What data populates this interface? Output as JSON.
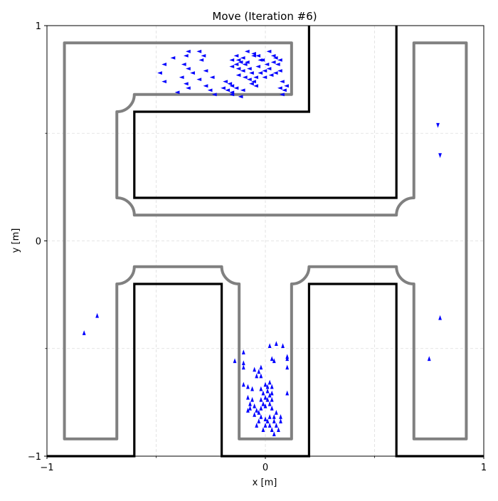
{
  "chart_data": {
    "type": "scatter",
    "title": "Move (Iteration #6)",
    "xlabel": "x [m]",
    "ylabel": "y [m]",
    "xlim": [
      -1,
      1
    ],
    "ylim": [
      -1,
      1
    ],
    "x_ticks": [
      {
        "value": -1,
        "label": "−1"
      },
      {
        "value": 0,
        "label": "0"
      },
      {
        "value": 1,
        "label": "1"
      }
    ],
    "y_ticks": [
      {
        "value": -1,
        "label": "−1"
      },
      {
        "value": 0,
        "label": "0"
      },
      {
        "value": 1,
        "label": "1"
      }
    ],
    "minor_ticks": [
      -0.5,
      0.5
    ],
    "grid": true,
    "colors": {
      "particles": "#0000ff",
      "walls": "#000000",
      "track": "#808080",
      "grid": "#dddddd"
    },
    "walls": [
      [
        [
          0.2,
          1.0
        ],
        [
          0.2,
          0.6
        ],
        [
          -0.6,
          0.6
        ],
        [
          -0.6,
          0.2
        ],
        [
          0.6,
          0.2
        ],
        [
          0.6,
          1.0
        ]
      ],
      [
        [
          -1.0,
          -1.0
        ],
        [
          -0.6,
          -1.0
        ],
        [
          -0.6,
          -0.2
        ],
        [
          -0.2,
          -0.2
        ],
        [
          -0.2,
          -1.0
        ],
        [
          0.2,
          -1.0
        ],
        [
          0.2,
          -0.2
        ],
        [
          0.6,
          -0.2
        ],
        [
          0.6,
          -1.0
        ],
        [
          1.0,
          -1.0
        ]
      ]
    ],
    "track_paths": [
      "M -0.92 0.92 L 0.12 0.92 L 0.12 0.68 L -0.6 0.68 A 0.08 0.08 0 0 0 -0.68 0.6 L -0.68 0.2 A 0.08 0.08 0 0 0 -0.6 0.12 L 0.6 0.12 A 0.08 0.08 0 0 0 0.68 0.2 L 0.68 0.92 L 0.92 0.92 L 0.92 -0.92 L 0.68 -0.92 L 0.68 -0.2 A 0.08 0.08 0 0 0 0.6 -0.12 L 0.2 -0.12 A 0.08 0.08 0 0 0 0.12 -0.2 L 0.12 -0.92 L -0.12 -0.92 L -0.12 -0.2 A 0.08 0.08 0 0 0 -0.2 -0.12 L -0.6 -0.12 A 0.08 0.08 0 0 0 -0.68 -0.2 L -0.68 -0.92 L -0.92 -0.92 Z"
    ],
    "particle_clusters": [
      {
        "region": "top-corridor",
        "dir": "left",
        "points": [
          [
            -0.35,
            0.88
          ],
          [
            -0.3,
            0.88
          ],
          [
            -0.42,
            0.85
          ],
          [
            -0.36,
            0.86
          ],
          [
            -0.28,
            0.86
          ],
          [
            -0.46,
            0.82
          ],
          [
            -0.37,
            0.82
          ],
          [
            -0.29,
            0.84
          ],
          [
            -0.48,
            0.78
          ],
          [
            -0.35,
            0.8
          ],
          [
            -0.27,
            0.79
          ],
          [
            -0.38,
            0.76
          ],
          [
            -0.33,
            0.78
          ],
          [
            -0.3,
            0.75
          ],
          [
            -0.46,
            0.74
          ],
          [
            -0.24,
            0.76
          ],
          [
            -0.36,
            0.73
          ],
          [
            -0.4,
            0.69
          ],
          [
            -0.27,
            0.72
          ],
          [
            -0.25,
            0.7
          ],
          [
            -0.23,
            0.68
          ],
          [
            -0.35,
            0.71
          ],
          [
            -0.19,
            0.71
          ],
          [
            -0.18,
            0.74
          ],
          [
            -0.16,
            0.73
          ],
          [
            -0.15,
            0.72
          ],
          [
            -0.13,
            0.71
          ],
          [
            -0.1,
            0.7
          ],
          [
            -0.15,
            0.68
          ],
          [
            -0.11,
            0.67
          ],
          [
            -0.15,
            0.84
          ],
          [
            -0.13,
            0.86
          ],
          [
            -0.1,
            0.85
          ],
          [
            -0.08,
            0.88
          ],
          [
            -0.05,
            0.87
          ],
          [
            -0.03,
            0.86
          ],
          [
            -0.01,
            0.84
          ],
          [
            0.02,
            0.88
          ],
          [
            0.05,
            0.85
          ],
          [
            0.07,
            0.84
          ],
          [
            -0.15,
            0.81
          ],
          [
            -0.13,
            0.82
          ],
          [
            -0.12,
            0.8
          ],
          [
            -0.1,
            0.79
          ],
          [
            -0.11,
            0.83
          ],
          [
            -0.09,
            0.82
          ],
          [
            -0.12,
            0.77
          ],
          [
            -0.09,
            0.76
          ],
          [
            -0.06,
            0.78
          ],
          [
            -0.04,
            0.76
          ],
          [
            -0.02,
            0.78
          ],
          [
            0.0,
            0.79
          ],
          [
            0.02,
            0.8
          ],
          [
            0.03,
            0.77
          ],
          [
            0.05,
            0.78
          ],
          [
            0.07,
            0.79
          ],
          [
            0.01,
            0.82
          ],
          [
            0.04,
            0.83
          ],
          [
            -0.03,
            0.81
          ],
          [
            -0.07,
            0.8
          ],
          [
            -0.05,
            0.74
          ],
          [
            -0.07,
            0.75
          ],
          [
            -0.04,
            0.72
          ],
          [
            -0.06,
            0.73
          ],
          [
            0.0,
            0.76
          ],
          [
            0.08,
            0.74
          ],
          [
            0.1,
            0.72
          ],
          [
            0.07,
            0.71
          ],
          [
            0.09,
            0.7
          ],
          [
            0.08,
            0.68
          ],
          [
            -0.15,
            0.69
          ],
          [
            -0.17,
            0.7
          ],
          [
            -0.05,
            0.86
          ],
          [
            -0.02,
            0.84
          ],
          [
            0.04,
            0.86
          ],
          [
            0.06,
            0.82
          ],
          [
            -0.08,
            0.83
          ],
          [
            -0.12,
            0.84
          ]
        ]
      },
      {
        "region": "right-corridor",
        "dir": "down",
        "points": [
          [
            0.79,
            0.54
          ],
          [
            0.8,
            0.4
          ]
        ]
      },
      {
        "region": "right-corridor-lower",
        "dir": "up",
        "points": [
          [
            0.8,
            -0.36
          ],
          [
            0.75,
            -0.55
          ]
        ]
      },
      {
        "region": "left-corridor",
        "dir": "up",
        "points": [
          [
            -0.77,
            -0.35
          ],
          [
            -0.83,
            -0.43
          ]
        ]
      },
      {
        "region": "bottom-middle-corridor",
        "dir": "up",
        "points": [
          [
            -0.1,
            -0.52
          ],
          [
            -0.14,
            -0.56
          ],
          [
            -0.1,
            -0.57
          ],
          [
            -0.1,
            -0.59
          ],
          [
            0.05,
            -0.48
          ],
          [
            0.02,
            -0.49
          ],
          [
            0.08,
            -0.49
          ],
          [
            0.1,
            -0.54
          ],
          [
            0.1,
            -0.55
          ],
          [
            0.04,
            -0.56
          ],
          [
            0.03,
            -0.55
          ],
          [
            0.1,
            -0.59
          ],
          [
            -0.05,
            -0.6
          ],
          [
            -0.03,
            -0.61
          ],
          [
            -0.02,
            -0.59
          ],
          [
            -0.04,
            -0.63
          ],
          [
            -0.02,
            -0.63
          ],
          [
            -0.1,
            -0.67
          ],
          [
            -0.08,
            -0.68
          ],
          [
            -0.06,
            -0.69
          ],
          [
            0.0,
            -0.67
          ],
          [
            0.01,
            -0.68
          ],
          [
            0.02,
            -0.66
          ],
          [
            0.03,
            -0.68
          ],
          [
            0.1,
            -0.71
          ],
          [
            -0.02,
            -0.69
          ],
          [
            -0.01,
            -0.71
          ],
          [
            0.01,
            -0.7
          ],
          [
            0.02,
            -0.72
          ],
          [
            0.03,
            -0.71
          ],
          [
            0.0,
            -0.73
          ],
          [
            -0.02,
            -0.74
          ],
          [
            0.01,
            -0.74
          ],
          [
            0.03,
            -0.74
          ],
          [
            -0.01,
            -0.76
          ],
          [
            0.02,
            -0.76
          ],
          [
            0.0,
            -0.77
          ],
          [
            -0.02,
            -0.78
          ],
          [
            0.03,
            -0.78
          ],
          [
            -0.06,
            -0.74
          ],
          [
            -0.07,
            -0.76
          ],
          [
            -0.05,
            -0.77
          ],
          [
            -0.07,
            -0.78
          ],
          [
            -0.04,
            -0.79
          ],
          [
            -0.05,
            -0.81
          ],
          [
            -0.03,
            -0.8
          ],
          [
            -0.02,
            -0.82
          ],
          [
            -0.03,
            -0.84
          ],
          [
            0.0,
            -0.83
          ],
          [
            0.01,
            -0.84
          ],
          [
            0.0,
            -0.86
          ],
          [
            0.02,
            -0.86
          ],
          [
            0.04,
            -0.84
          ],
          [
            0.05,
            -0.86
          ],
          [
            0.06,
            -0.88
          ],
          [
            0.03,
            -0.88
          ],
          [
            0.04,
            -0.9
          ],
          [
            0.07,
            -0.84
          ],
          [
            0.02,
            -0.82
          ],
          [
            0.04,
            -0.82
          ],
          [
            -0.01,
            -0.88
          ],
          [
            -0.04,
            -0.86
          ],
          [
            0.05,
            -0.8
          ],
          [
            0.07,
            -0.82
          ],
          [
            -0.08,
            -0.79
          ],
          [
            -0.08,
            -0.73
          ]
        ]
      }
    ]
  }
}
